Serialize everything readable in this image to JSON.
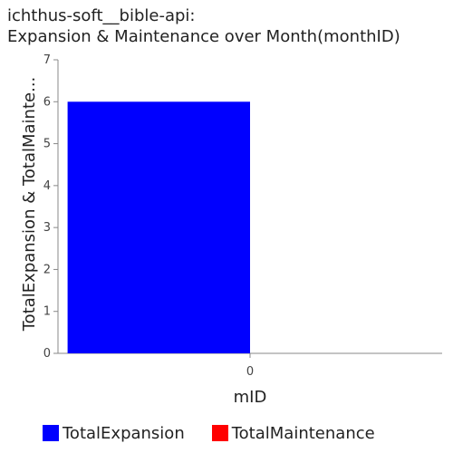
{
  "chart_data": {
    "type": "bar",
    "title_line1": "ichthus-soft__bible-api:",
    "title_line2": "Expansion & Maintenance over Month(monthID)",
    "xlabel": "mID",
    "ylabel": "TotalExpansion & TotalMainte...",
    "categories": [
      "0"
    ],
    "series": [
      {
        "name": "TotalExpansion",
        "values": [
          6
        ],
        "color": "#0000ff"
      },
      {
        "name": "TotalMaintenance",
        "values": [
          0
        ],
        "color": "#ff0000"
      }
    ],
    "ylim": [
      0,
      7
    ],
    "yticks": [
      0,
      1,
      2,
      3,
      4,
      5,
      6,
      7
    ],
    "grid": false,
    "legend_position": "bottom"
  }
}
